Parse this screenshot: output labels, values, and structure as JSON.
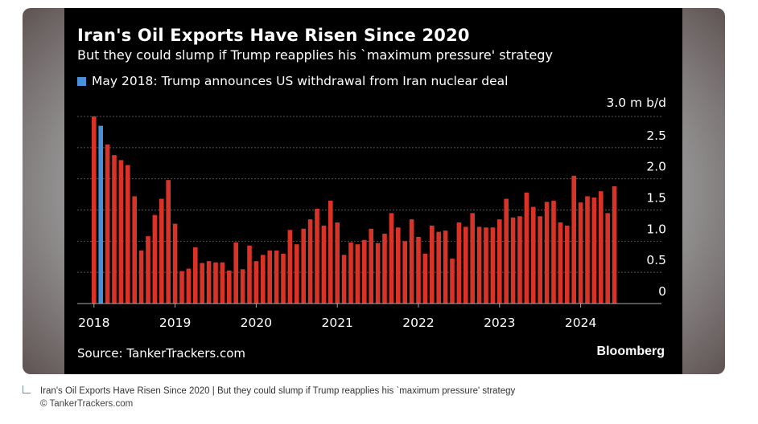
{
  "colors": {
    "bar": "#d93327",
    "highlight": "#4a90d9",
    "grid": "#555555",
    "text": "#ffffff",
    "card_background": "#000000"
  },
  "header": {
    "title": "Iran's Oil Exports Have Risen Since 2020",
    "subtitle": "But they could slump if Trump reapplies his `maximum pressure' strategy",
    "legend": "May 2018: Trump announces US withdrawal from Iran nuclear deal"
  },
  "footer": {
    "source": "Source: TankerTrackers.com",
    "brand": "Bloomberg"
  },
  "caption": {
    "text": "Iran's Oil Exports Have Risen Since 2020 | But they could slump if Trump reapplies his `maximum pressure' strategy",
    "credit": "© TankerTrackers.com"
  },
  "chart_data": {
    "type": "bar",
    "unit_label": "3.0 m b/d",
    "ylim": [
      0,
      3.0
    ],
    "y_ticks": [
      0,
      0.5,
      1.0,
      1.5,
      2.0,
      2.5
    ],
    "y_tick_labels": [
      "0",
      "0.5",
      "1.0",
      "1.5",
      "2.0",
      "2.5"
    ],
    "x_tick_labels": [
      "2018",
      "2019",
      "2020",
      "2021",
      "2022",
      "2023",
      "2024"
    ],
    "grid": true,
    "legend_position": "top-left",
    "series": [
      {
        "highlight_index": 1,
        "values": [
          3.0,
          2.85,
          2.55,
          2.38,
          2.3,
          2.22,
          1.72,
          0.85,
          1.08,
          1.42,
          1.68,
          1.98,
          1.28,
          0.52,
          0.56,
          0.9,
          0.65,
          0.68,
          0.66,
          0.66,
          0.53,
          0.98,
          0.55,
          0.93,
          0.68,
          0.78,
          0.85,
          0.85,
          0.8,
          1.18,
          0.95,
          1.2,
          1.35,
          1.52,
          1.25,
          1.65,
          1.3,
          0.78,
          0.98,
          0.95,
          1.02,
          1.2,
          0.97,
          1.12,
          1.45,
          1.22,
          1.0,
          1.35,
          1.07,
          0.8,
          1.25,
          1.15,
          1.17,
          0.72,
          1.3,
          1.23,
          1.45,
          1.23,
          1.22,
          1.22,
          1.35,
          1.68,
          1.38,
          1.4,
          1.78,
          1.55,
          1.4,
          1.63,
          1.65,
          1.3,
          1.25,
          2.05,
          1.62,
          1.72,
          1.7,
          1.8,
          1.45,
          1.88
        ]
      }
    ]
  }
}
